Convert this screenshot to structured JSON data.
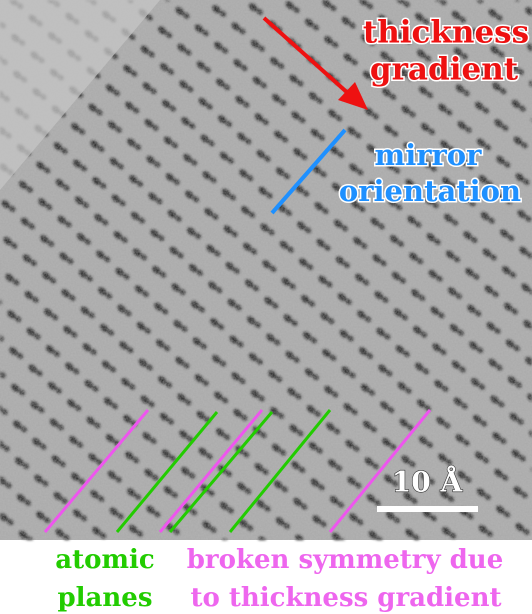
{
  "image": {
    "labels": [
      {
        "lines": [
          "thickness",
          "gradient"
        ]
      },
      {
        "lines": [
          "mirror",
          "orientation"
        ]
      }
    ],
    "scale_bar": "10 Å"
  },
  "caption": {
    "atomic_planes": [
      "atomic",
      "planes"
    ],
    "broken_symmetry": [
      "broken symmetry due",
      "to thickness gradient"
    ]
  }
}
